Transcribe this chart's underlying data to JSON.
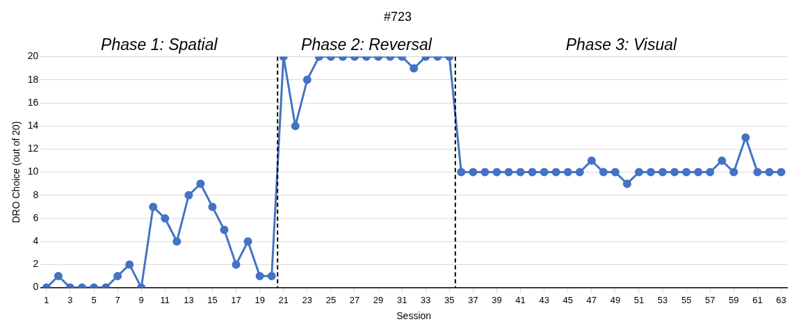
{
  "chart_data": {
    "type": "line",
    "title": "#723",
    "xlabel": "Session",
    "ylabel": "DRO Choice (out of 20)",
    "annotations": [
      "Phase 1: Spatial",
      "Phase 2: Reversal",
      "Phase 3: Visual"
    ],
    "x": [
      1,
      2,
      3,
      4,
      5,
      6,
      7,
      8,
      9,
      10,
      11,
      12,
      13,
      14,
      15,
      16,
      17,
      18,
      19,
      20,
      21,
      22,
      23,
      24,
      25,
      26,
      27,
      28,
      29,
      30,
      31,
      32,
      33,
      34,
      35,
      36,
      37,
      38,
      39,
      40,
      41,
      42,
      43,
      44,
      45,
      46,
      47,
      48,
      49,
      50,
      51,
      52,
      53,
      54,
      55,
      56,
      57,
      58,
      59,
      60,
      61,
      62,
      63
    ],
    "series": [
      {
        "color": "#4472c4",
        "values": [
          0,
          1,
          0,
          0,
          0,
          0,
          1,
          2,
          0,
          7,
          6,
          4,
          8,
          9,
          7,
          5,
          2,
          4,
          1,
          1,
          20,
          14,
          18,
          20,
          20,
          20,
          20,
          20,
          20,
          20,
          20,
          19,
          20,
          20,
          20,
          10,
          10,
          10,
          10,
          10,
          10,
          10,
          10,
          10,
          10,
          10,
          11,
          10,
          10,
          9,
          10,
          10,
          10,
          10,
          10,
          10,
          10,
          11,
          10,
          13,
          10,
          10,
          10
        ]
      }
    ],
    "xlim": [
      0.5,
      63.5
    ],
    "xticks": [
      1,
      3,
      5,
      7,
      9,
      11,
      13,
      15,
      17,
      19,
      21,
      23,
      25,
      27,
      29,
      31,
      33,
      35,
      37,
      39,
      41,
      43,
      45,
      47,
      49,
      51,
      53,
      55,
      57,
      59,
      61,
      63
    ],
    "ylim": [
      0,
      20
    ],
    "yticks": [
      0,
      2,
      4,
      6,
      8,
      10,
      12,
      14,
      16,
      18,
      20
    ],
    "ref_lines": [
      {
        "axis": "x",
        "value": 20.5,
        "color": "#000000",
        "line_style": "dashed"
      },
      {
        "axis": "x",
        "value": 35.5,
        "color": "#000000",
        "line_style": "dashed"
      }
    ],
    "grid": "y",
    "marker": "circle",
    "line_style": "solid",
    "legend": false
  }
}
